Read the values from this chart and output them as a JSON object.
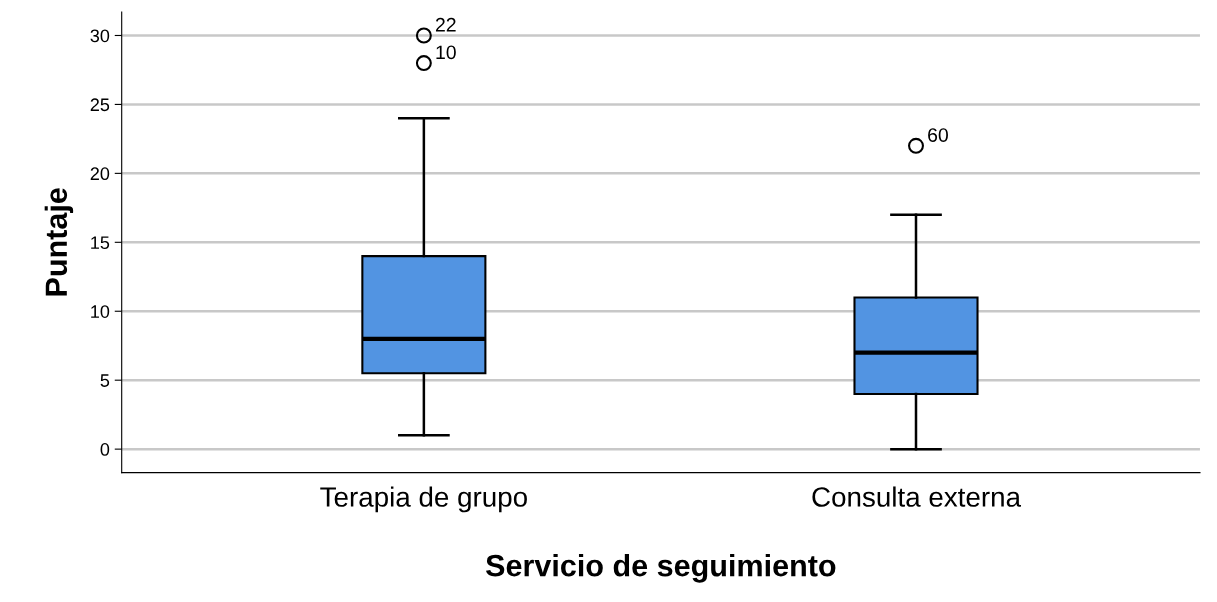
{
  "chart_data": {
    "type": "box",
    "xlabel": "Servicio de seguimiento",
    "ylabel": "Puntaje",
    "categories": [
      "Terapia de grupo",
      "Consulta externa"
    ],
    "color": "#5294e2",
    "boxes": [
      {
        "low": 1,
        "q1": 5.5,
        "median": 8,
        "q3": 14,
        "high": 24,
        "outliers": [
          30,
          28
        ]
      },
      {
        "low": 0,
        "q1": 4,
        "median": 7,
        "q3": 11,
        "high": 17,
        "outliers": [
          22
        ]
      }
    ],
    "ylim": [
      -1.7,
      31.7
    ],
    "yticks": [
      0,
      5,
      10,
      15,
      20,
      25,
      30
    ],
    "grid": "y",
    "annotations": [
      "22",
      "10",
      "60"
    ]
  }
}
